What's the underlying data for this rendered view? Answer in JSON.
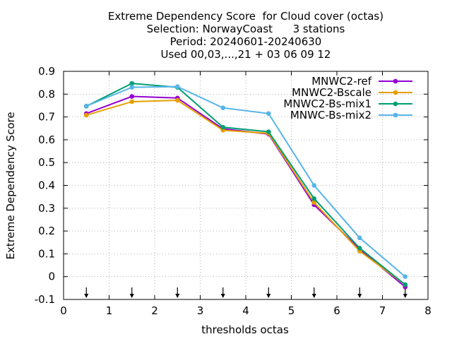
{
  "chart_data": {
    "type": "line",
    "title_lines": [
      "Extreme Dependency Score  for Cloud cover (octas)",
      "Selection: NorwayCoast      3 stations",
      "Period: 20240601-20240630",
      "Used 00,03,...,21 + 03 06 09 12"
    ],
    "xlabel": "thresholds octas",
    "ylabel": "Extreme Dependency Score",
    "xlim": [
      0,
      8
    ],
    "ylim": [
      -0.1,
      0.9
    ],
    "xticks": [
      0,
      1,
      2,
      3,
      4,
      5,
      6,
      7,
      8
    ],
    "yticks": [
      -0.1,
      0,
      0.1,
      0.2,
      0.3,
      0.4,
      0.5,
      0.6,
      0.7,
      0.8,
      0.9
    ],
    "grid": true,
    "legend_position": "top-right",
    "x": [
      0.5,
      1.5,
      2.5,
      3.5,
      4.5,
      5.5,
      6.5,
      7.5
    ],
    "arrow_markers_x": [
      0.5,
      1.5,
      2.5,
      3.5,
      4.5,
      5.5,
      6.5,
      7.5
    ],
    "series": [
      {
        "name": "MNWC2-ref",
        "color": "#9400d3",
        "values": [
          0.715,
          0.79,
          0.783,
          0.648,
          0.625,
          0.315,
          0.12,
          -0.045
        ]
      },
      {
        "name": "MNWC2-Bscale",
        "color": "#e69f00",
        "values": [
          0.708,
          0.767,
          0.773,
          0.642,
          0.628,
          0.325,
          0.112,
          -0.035
        ]
      },
      {
        "name": "MNWC2-Bs-mix1",
        "color": "#009e73",
        "values": [
          0.747,
          0.847,
          0.83,
          0.655,
          0.635,
          0.342,
          0.125,
          -0.035
        ]
      },
      {
        "name": "MNWC-Bs-mix2",
        "color": "#56b4e9",
        "values": [
          0.748,
          0.83,
          0.833,
          0.74,
          0.715,
          0.4,
          0.17,
          0.0
        ]
      }
    ]
  }
}
